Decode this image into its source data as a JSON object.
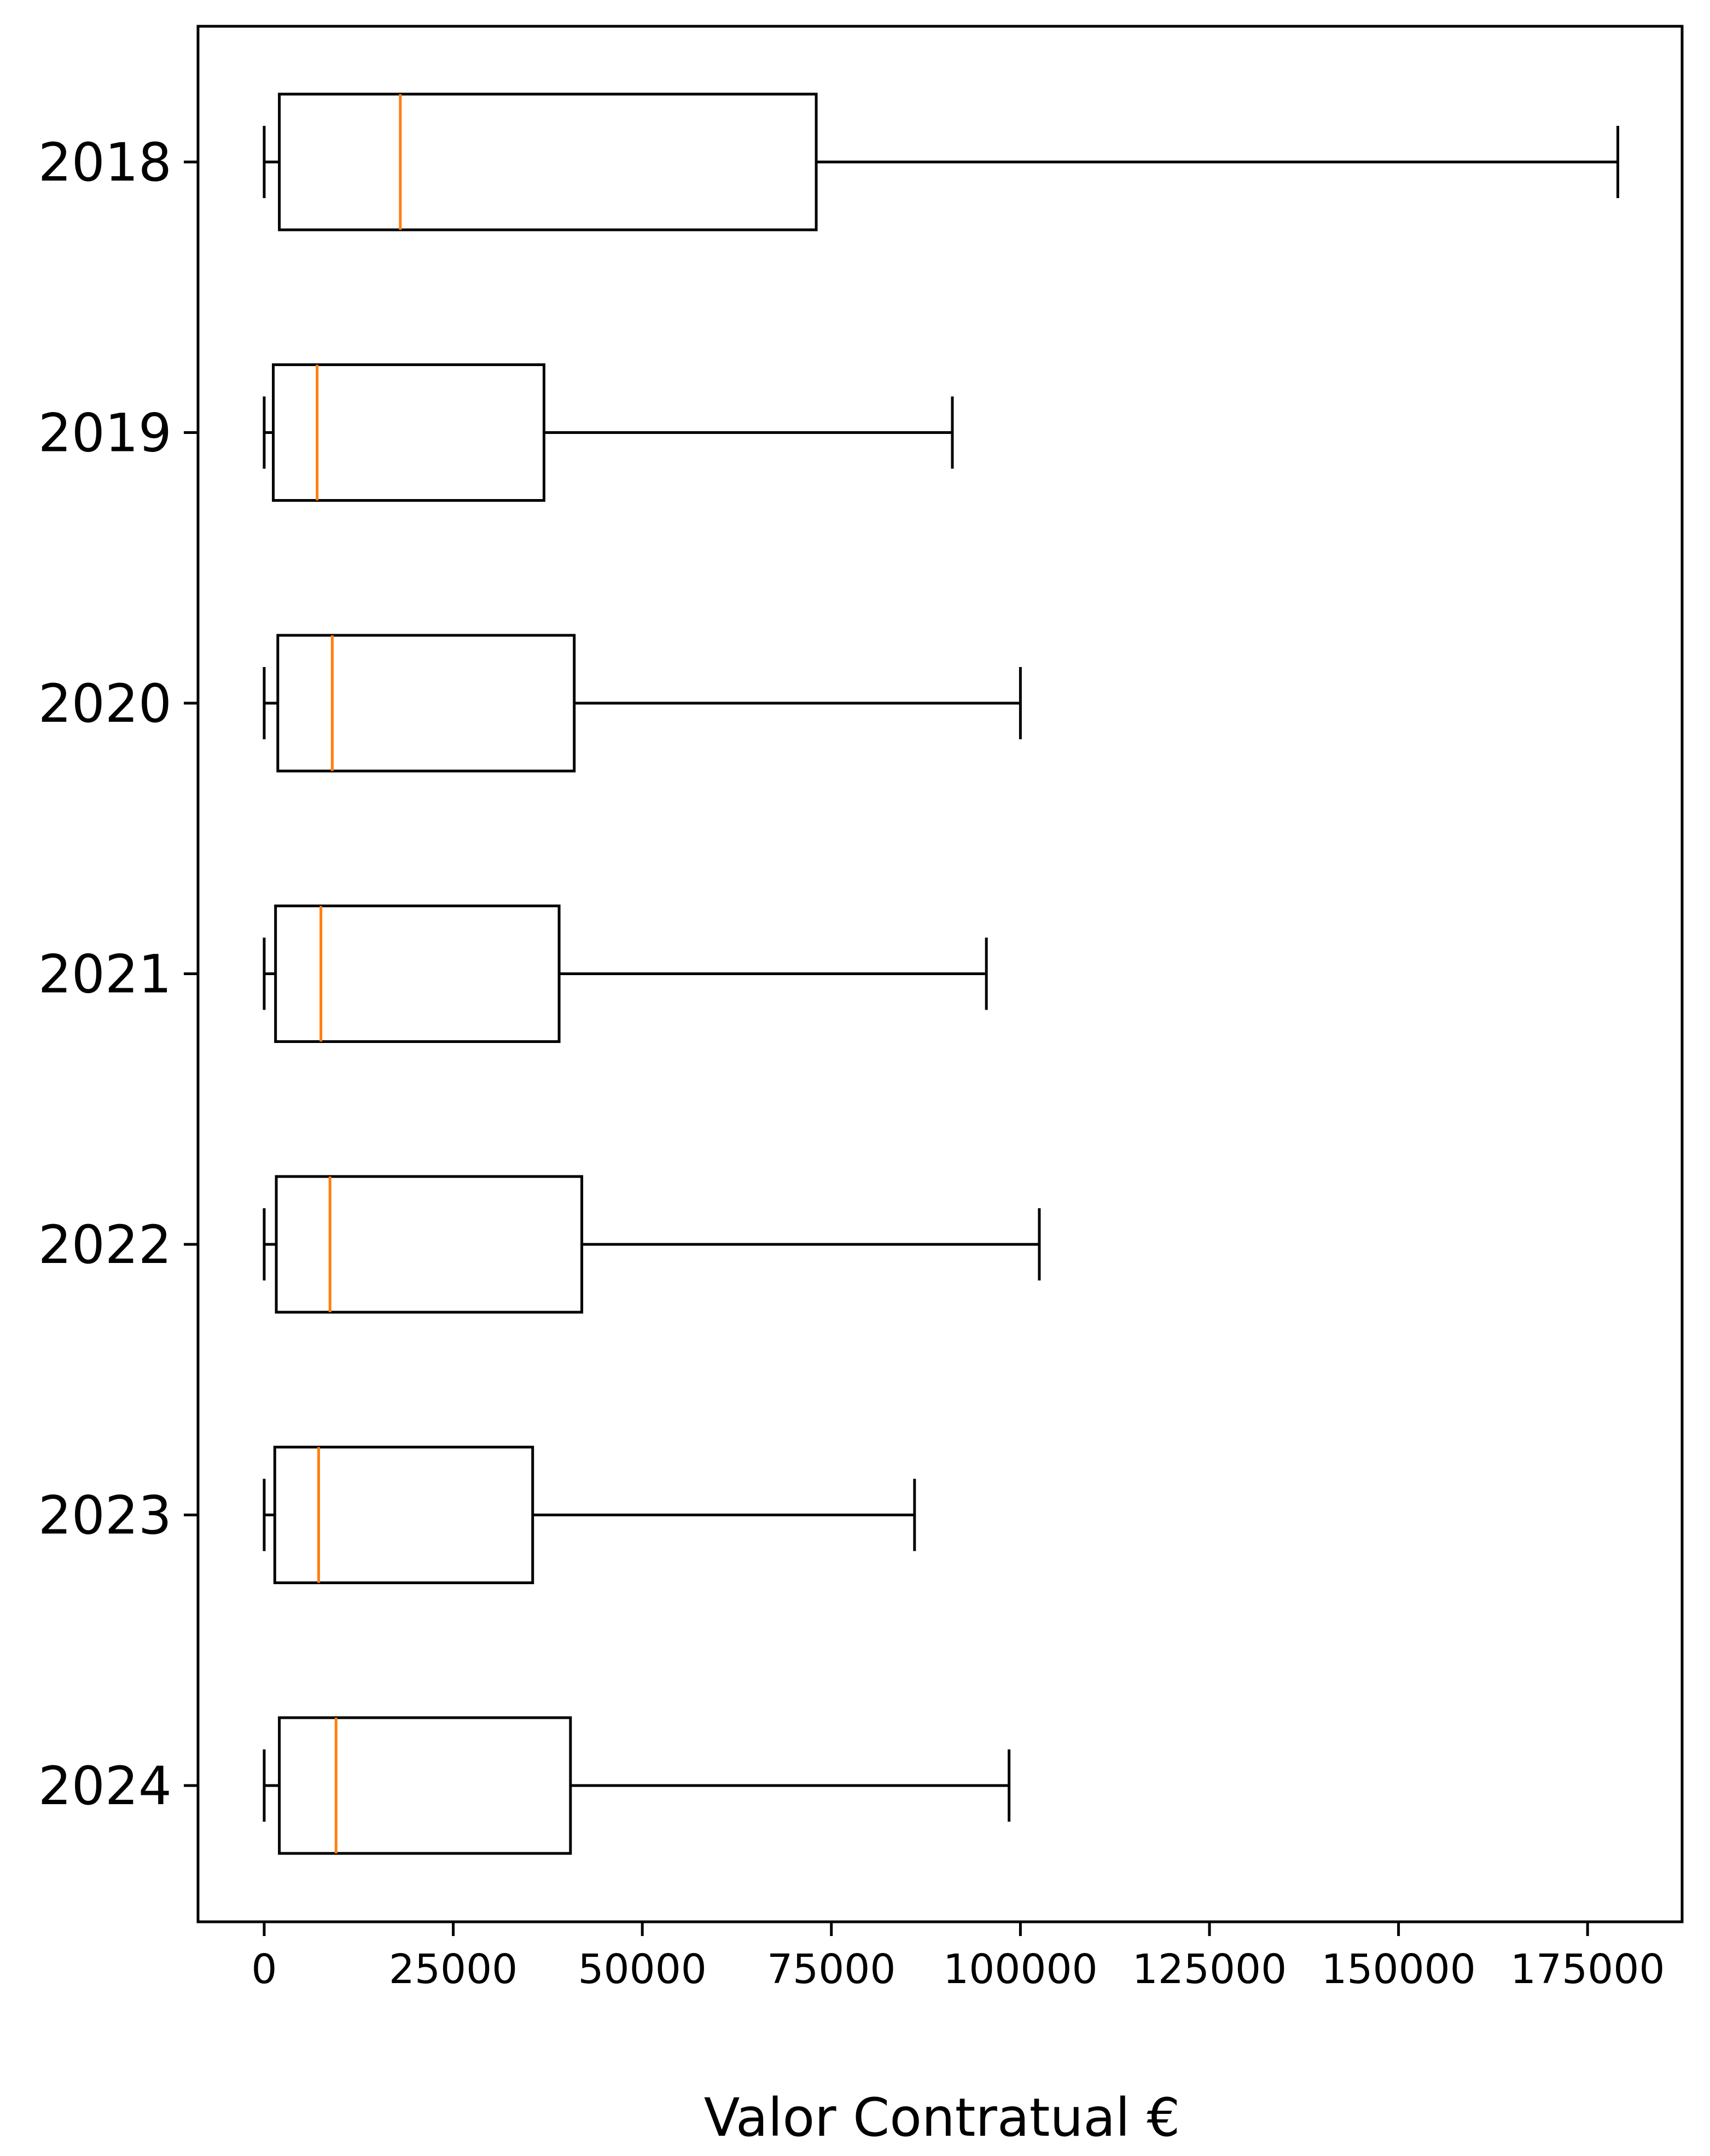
{
  "chart_data": {
    "type": "boxplot",
    "orientation": "horizontal",
    "title": "",
    "xlabel": "Valor Contratual €",
    "ylabel": "",
    "xlim": [
      -8750,
      187500
    ],
    "x_ticks": [
      0,
      25000,
      50000,
      75000,
      100000,
      125000,
      150000,
      175000
    ],
    "x_tick_labels": [
      "0",
      "25000",
      "50000",
      "75000",
      "100000",
      "125000",
      "150000",
      "175000"
    ],
    "categories": [
      "2018",
      "2019",
      "2020",
      "2021",
      "2022",
      "2023",
      "2024"
    ],
    "boxes": [
      {
        "category": "2018",
        "whisker_low": 0,
        "q1": 2000,
        "median": 18000,
        "q3": 73000,
        "whisker_high": 179000
      },
      {
        "category": "2019",
        "whisker_low": 0,
        "q1": 1200,
        "median": 7000,
        "q3": 37000,
        "whisker_high": 91000
      },
      {
        "category": "2020",
        "whisker_low": 0,
        "q1": 1800,
        "median": 9000,
        "q3": 41000,
        "whisker_high": 100000
      },
      {
        "category": "2021",
        "whisker_low": 0,
        "q1": 1500,
        "median": 7500,
        "q3": 39000,
        "whisker_high": 95500
      },
      {
        "category": "2022",
        "whisker_low": 0,
        "q1": 1600,
        "median": 8700,
        "q3": 42000,
        "whisker_high": 102500
      },
      {
        "category": "2023",
        "whisker_low": 0,
        "q1": 1400,
        "median": 7200,
        "q3": 35500,
        "whisker_high": 86000
      },
      {
        "category": "2024",
        "whisker_low": 0,
        "q1": 2000,
        "median": 9500,
        "q3": 40500,
        "whisker_high": 98500
      }
    ],
    "grid": false,
    "legend": "none",
    "colors": {
      "box": "#000000",
      "median": "#ff7f0e",
      "background": "#ffffff"
    }
  }
}
